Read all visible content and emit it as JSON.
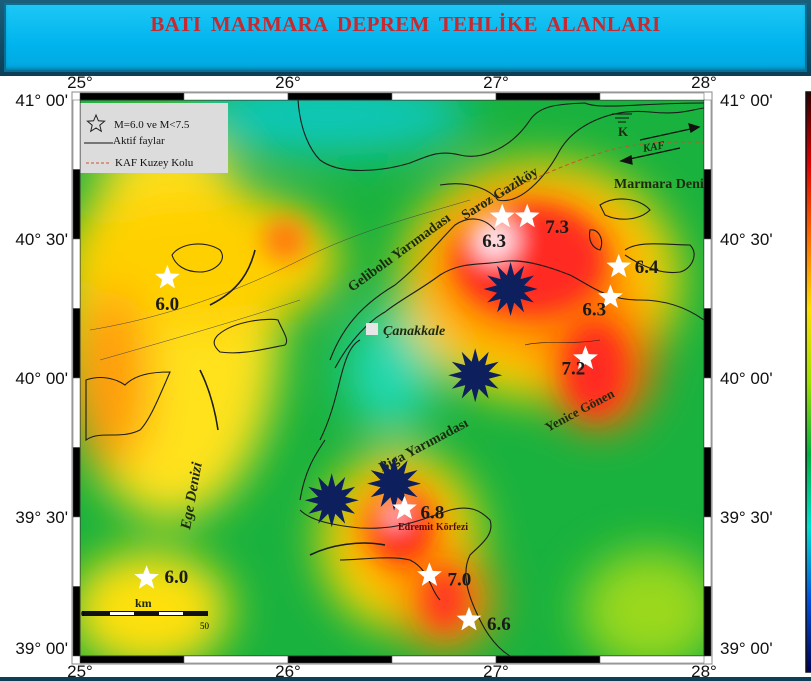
{
  "title": "BATI   MARMARA  DEPREM TEHLİKE  ALANLARI",
  "map": {
    "extent": {
      "lon": [
        25,
        28
      ],
      "lat": [
        39,
        41
      ]
    },
    "lon_labels": [
      "25°",
      "26°",
      "27°",
      "28°"
    ],
    "lat_labels": [
      "41° 00'",
      "40° 30'",
      "40° 00'",
      "39° 30'",
      "39° 00'"
    ],
    "legend": {
      "star_label": "M=6.0 ve M<7.5",
      "fault_label": "Aktif faylar",
      "kaf_label": "KAF Kuzey Kolu"
    },
    "scale_bar": {
      "unit": "km",
      "start": "0",
      "end": "50"
    },
    "places": {
      "gelibolu": "Gelibolu Yarımadası",
      "saroz": "Saroz Gaziköy",
      "marmara": "Marmara Denizi",
      "canakkale": "Çanakkale",
      "yenice": "Yenice Gönen",
      "biga": "Biga Yarımadası",
      "edremit": "Edremit Körfezi",
      "ege": "Ege Denizi",
      "kaf": "KAF",
      "k_symbol": "K"
    },
    "earthquakes": [
      {
        "lon": 25.42,
        "lat": 40.36,
        "mag": "6.0"
      },
      {
        "lon": 27.03,
        "lat": 40.58,
        "mag": "6.3"
      },
      {
        "lon": 27.15,
        "lat": 40.58,
        "mag": "7.3"
      },
      {
        "lon": 27.59,
        "lat": 40.4,
        "mag": "6.4"
      },
      {
        "lon": 27.55,
        "lat": 40.29,
        "mag": "6.3"
      },
      {
        "lon": 27.43,
        "lat": 40.07,
        "mag": "7.2"
      },
      {
        "lon": 26.56,
        "lat": 39.53,
        "mag": "6.8"
      },
      {
        "lon": 26.68,
        "lat": 39.29,
        "mag": "7.0"
      },
      {
        "lon": 26.87,
        "lat": 39.13,
        "mag": "6.6"
      },
      {
        "lon": 25.32,
        "lat": 39.28,
        "mag": "6.0"
      }
    ],
    "hazard_markers": [
      {
        "lon": 27.07,
        "lat": 40.32
      },
      {
        "lon": 26.9,
        "lat": 40.01
      },
      {
        "lon": 26.21,
        "lat": 39.56
      },
      {
        "lon": 26.51,
        "lat": 39.62
      }
    ],
    "colors": {
      "star": "#ffffff",
      "hazard_marker": "#0d1f5c",
      "title": "#c62a30",
      "banner": "#00b4ee",
      "kaf_line": "#d0502a"
    },
    "colorbar": [
      "#2a0000",
      "#e00000",
      "#ff6a00",
      "#ffe000",
      "#a0e000",
      "#00b040",
      "#00e0d0",
      "#0050e0",
      "#000050"
    ]
  }
}
